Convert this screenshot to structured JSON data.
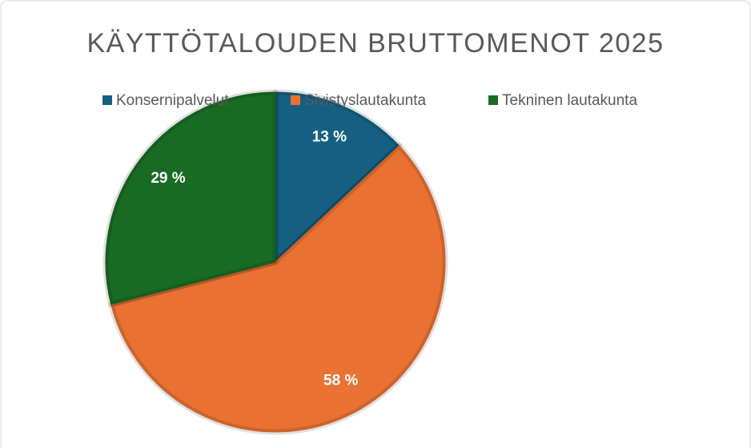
{
  "chart_data": {
    "type": "pie",
    "title": "KÄYTTÖTALOUDEN BRUTTOMENOT 2025",
    "categories": [
      "Konsernipalvelut",
      "Sivistyslautakunta",
      "Tekninen lautakunta"
    ],
    "values": [
      13,
      58,
      29
    ],
    "value_labels": [
      "13 %",
      "58 %",
      "29 %"
    ],
    "colors": [
      "#156082",
      "#e97132",
      "#196b24"
    ],
    "legend": "top"
  }
}
